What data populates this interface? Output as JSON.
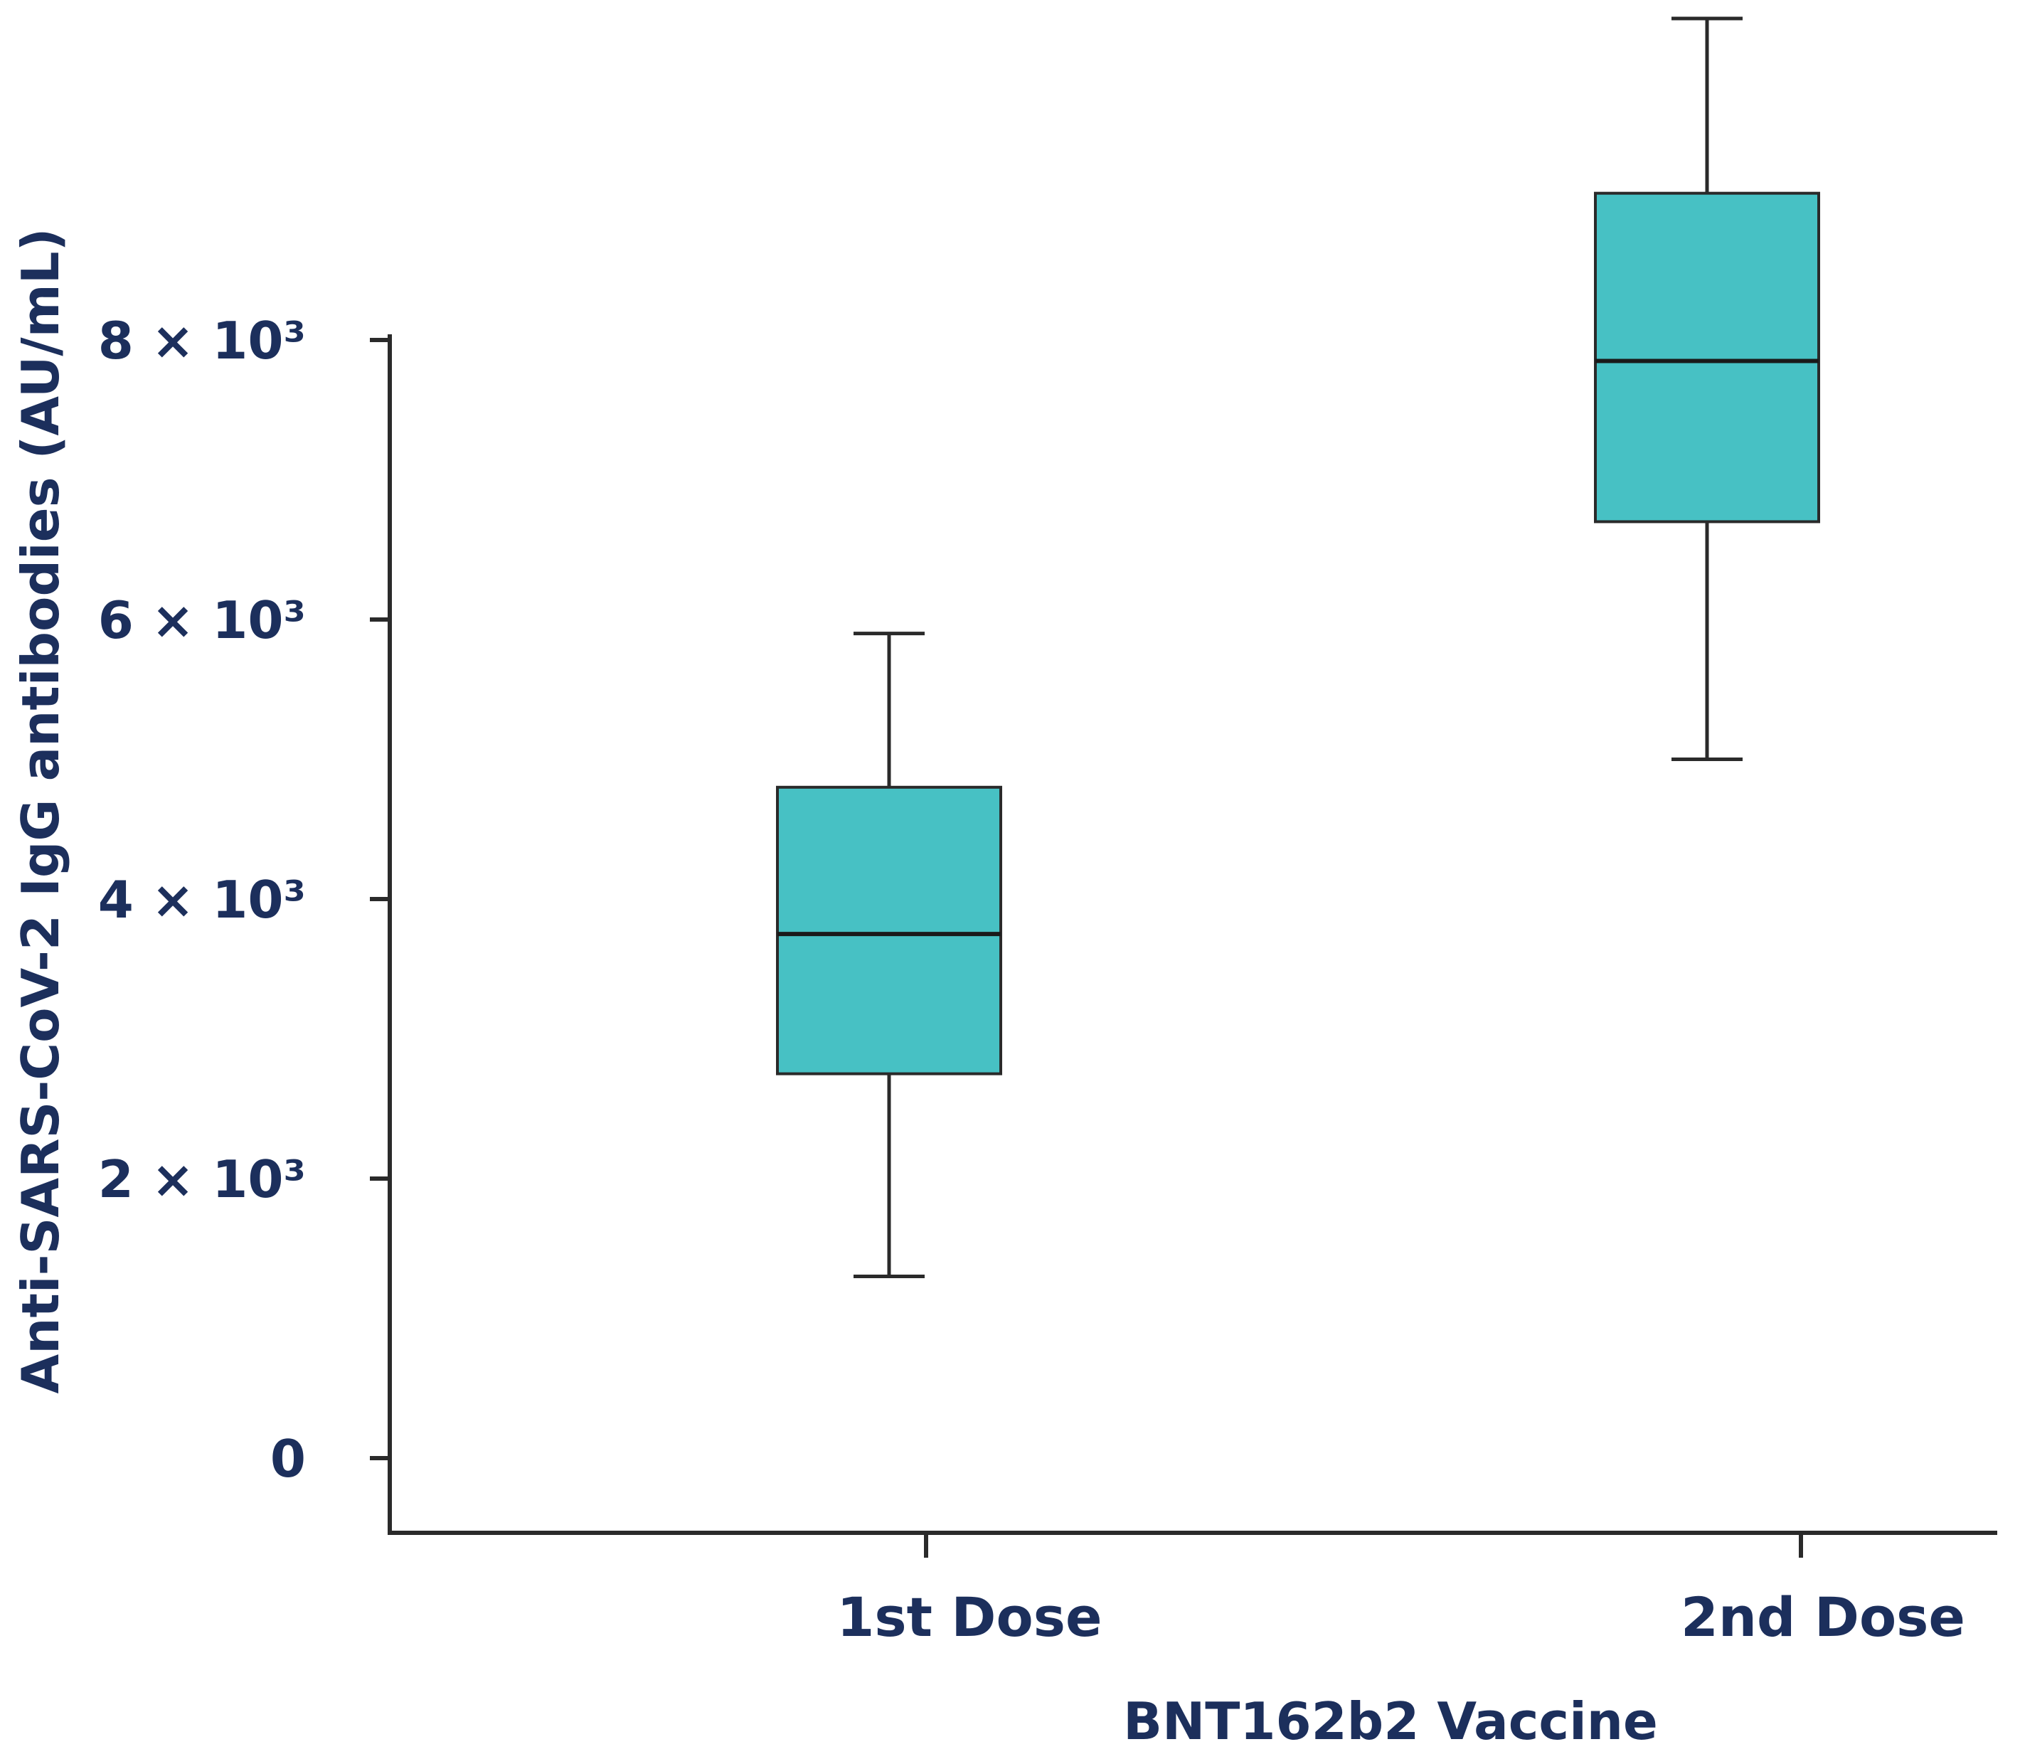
{
  "chart_data": {
    "type": "box",
    "title": "",
    "xlabel": "BNT162b2 Vaccine",
    "ylabel": "Anti-SARS-CoV-2 IgG antibodies (AU/mL)",
    "ylim": [
      -550,
      10300
    ],
    "yticks": [
      {
        "value": 0,
        "label": "0"
      },
      {
        "value": 2000,
        "label": "2 × 10³"
      },
      {
        "value": 4000,
        "label": "4 × 10³"
      },
      {
        "value": 6000,
        "label": "6 × 10³"
      },
      {
        "value": 8000,
        "label": "8 × 10³"
      }
    ],
    "categories": [
      "1st Dose",
      "2nd Dose"
    ],
    "boxes": [
      {
        "name": "1st Dose",
        "whisker_low": 1300,
        "q1": 2750,
        "median": 3750,
        "q3": 4800,
        "whisker_high": 5900
      },
      {
        "name": "2nd Dose",
        "whisker_low": 5000,
        "q1": 6700,
        "median": 7850,
        "q3": 9050,
        "whisker_high": 10300
      }
    ],
    "box_color": "#47c1c4",
    "text_color": "#1c2f5c"
  }
}
